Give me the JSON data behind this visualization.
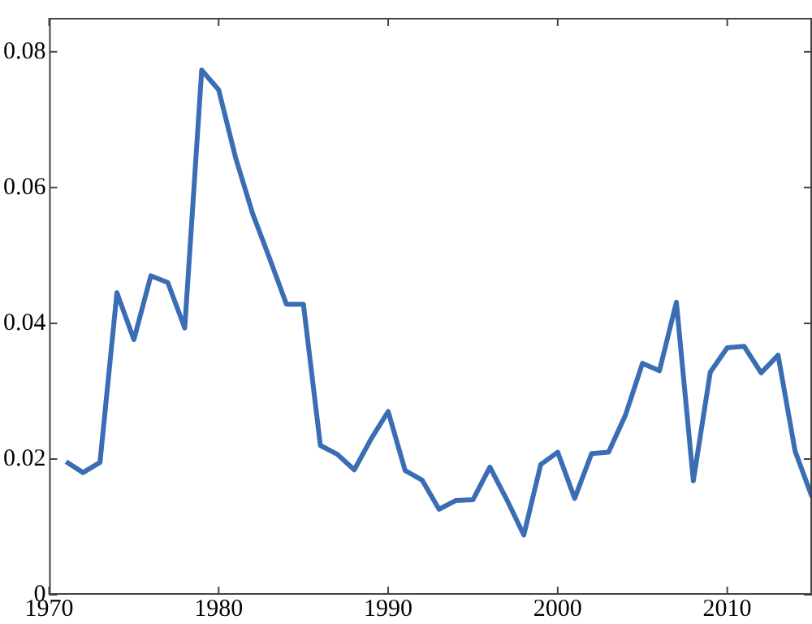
{
  "chart_data": {
    "type": "line",
    "x": [
      1971,
      1972,
      1973,
      1974,
      1975,
      1976,
      1977,
      1978,
      1979,
      1980,
      1981,
      1982,
      1983,
      1984,
      1985,
      1986,
      1987,
      1988,
      1989,
      1990,
      1991,
      1992,
      1993,
      1994,
      1995,
      1996,
      1997,
      1998,
      1999,
      2000,
      2001,
      2002,
      2003,
      2004,
      2005,
      2006,
      2007,
      2008,
      2009,
      2010,
      2011,
      2012,
      2013,
      2014,
      2015
    ],
    "series": [
      {
        "color": "#3b6db5",
        "values": [
          0.0196,
          0.018,
          0.0195,
          0.0445,
          0.0376,
          0.047,
          0.046,
          0.0393,
          0.0773,
          0.0744,
          0.0644,
          0.0562,
          0.0496,
          0.0428,
          0.0428,
          0.022,
          0.0207,
          0.0184,
          0.023,
          0.027,
          0.0183,
          0.0169,
          0.0126,
          0.0139,
          0.014,
          0.0188,
          0.014,
          0.0088,
          0.0192,
          0.021,
          0.0142,
          0.0208,
          0.021,
          0.0265,
          0.0341,
          0.033,
          0.0431,
          0.0168,
          0.0328,
          0.0364,
          0.0366,
          0.0327,
          0.0353,
          0.0212,
          0.0144
        ]
      }
    ],
    "xlim": [
      1970,
      2015
    ],
    "xticks": [
      1970,
      1980,
      1990,
      2000,
      2010
    ],
    "ylim": [
      0,
      0.085
    ],
    "yticks": [
      0,
      0.02,
      0.04,
      0.06,
      0.08
    ],
    "grid": false,
    "legend": false,
    "marker": "none",
    "line_style": "solid"
  }
}
